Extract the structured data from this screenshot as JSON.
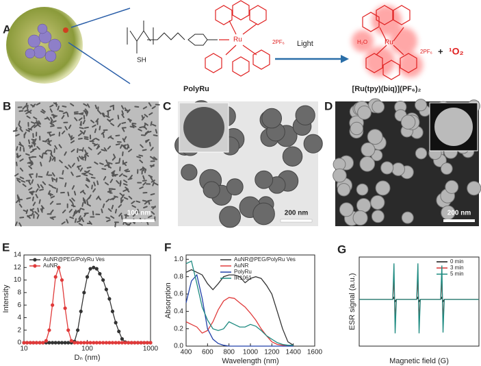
{
  "figure": {
    "panel_a": {
      "label": "A",
      "sh": "SH",
      "ru": "Ru",
      "counter_ion": "2PF₆",
      "arrow_label": "Light",
      "polymer_name": "PolyRu",
      "product_water": "H₂O",
      "product_ru": "Ru",
      "product_counter_ion": "2PF₆",
      "product_name": "[Ru(tpy)(biq)](PF₆)₂",
      "plus": "+",
      "singlet_oxygen": "¹O₂"
    },
    "panel_b": {
      "label": "B",
      "scale_bar": "100 nm"
    },
    "panel_c": {
      "label": "C",
      "scale_bar": "200 nm"
    },
    "panel_d": {
      "label": "D",
      "scale_bar": "200 nm"
    }
  },
  "chart_data": [
    {
      "type": "line",
      "label": "E",
      "x_label": "Dₙ (nm)",
      "y_label": "Intensity",
      "xlog": true,
      "markers": true,
      "legend": "upper left",
      "xlim": [
        10,
        1000
      ],
      "xticks": [
        10,
        100,
        1000
      ],
      "ylim": [
        0,
        14
      ],
      "yticks": [
        0,
        2,
        4,
        6,
        8,
        10,
        12,
        14
      ],
      "x": [
        10,
        11.2,
        12.6,
        14.1,
        15.8,
        17.8,
        20,
        22.4,
        25.1,
        28.2,
        31.6,
        35.5,
        39.8,
        44.7,
        50.1,
        56.2,
        63.1,
        70.8,
        79.4,
        89.1,
        100,
        112,
        126,
        141,
        158,
        178,
        200,
        224,
        251,
        282,
        316,
        355,
        398,
        447,
        501,
        562,
        631,
        708,
        794,
        891,
        1000
      ],
      "series": [
        {
          "name": "AuNR@PEG/PolyRu Ves",
          "color": "#333333",
          "values": [
            0,
            0,
            0,
            0,
            0,
            0,
            0,
            0,
            0,
            0,
            0,
            0,
            0,
            0,
            0,
            0,
            0.2,
            2,
            5,
            8,
            10.5,
            11.8,
            12,
            11.8,
            11,
            10,
            8.5,
            7,
            5,
            3.2,
            1.8,
            0.6,
            0.1,
            0,
            0,
            0,
            0,
            0,
            0,
            0,
            0
          ]
        },
        {
          "name": "AuNR",
          "color": "#e03a3a",
          "values": [
            0,
            0,
            0,
            0,
            0,
            0,
            0,
            0.3,
            2,
            6,
            10.5,
            12,
            10,
            5.5,
            2,
            0.3,
            0,
            0,
            0,
            0,
            0,
            0,
            0,
            0,
            0,
            0,
            0,
            0,
            0,
            0,
            0,
            0,
            0,
            0,
            0,
            0,
            0,
            0,
            0,
            0,
            0
          ]
        }
      ]
    },
    {
      "type": "line",
      "label": "F",
      "x_label": "Wavelength (nm)",
      "y_label": "Absorption",
      "xlog": false,
      "markers": false,
      "legend": "upper right",
      "xlim": [
        400,
        1600
      ],
      "xticks": [
        400,
        600,
        800,
        1000,
        1200,
        1400,
        1600
      ],
      "ylim": [
        0,
        1.05
      ],
      "yticks": [
        {
          "value": 0,
          "label": "0.0"
        },
        0.2,
        0.4,
        0.6,
        0.8,
        {
          "value": 1,
          "label": "1.0"
        }
      ],
      "x": [
        400,
        450,
        500,
        550,
        600,
        650,
        700,
        750,
        800,
        850,
        900,
        950,
        1000,
        1050,
        1100,
        1150,
        1200,
        1250,
        1300,
        1350,
        1400
      ],
      "series": [
        {
          "name": "AuNR@PEG/PolyRu Ves",
          "color": "#333333",
          "values": [
            0.85,
            0.88,
            0.85,
            0.82,
            0.72,
            0.65,
            0.72,
            0.8,
            0.82,
            0.82,
            0.8,
            0.73,
            0.78,
            0.8,
            0.78,
            0.7,
            0.6,
            0.4,
            0.2,
            0.05,
            0.01
          ]
        },
        {
          "name": "AuNR",
          "color": "#e03a3a",
          "values": [
            0.28,
            0.25,
            0.22,
            0.15,
            0.18,
            0.28,
            0.42,
            0.52,
            0.56,
            0.55,
            0.5,
            0.45,
            0.38,
            0.3,
            0.2,
            0.12,
            0.05,
            0.02,
            0.01,
            0,
            0
          ]
        },
        {
          "name": "PolyRu",
          "color": "#1f3fa8",
          "values": [
            0.5,
            0.75,
            0.82,
            0.55,
            0.2,
            0.08,
            0.03,
            0.01,
            0,
            0,
            0,
            0,
            0,
            0,
            0,
            0,
            0,
            0,
            0,
            0,
            0
          ]
        },
        {
          "name": "IR1061",
          "color": "#1d8a80",
          "values": [
            0.95,
            0.98,
            0.72,
            0.45,
            0.3,
            0.2,
            0.18,
            0.2,
            0.28,
            0.25,
            0.22,
            0.22,
            0.25,
            0.23,
            0.18,
            0.12,
            0.08,
            0.04,
            0.02,
            0.01,
            0.01
          ]
        }
      ]
    },
    {
      "type": "line",
      "label": "G",
      "x_label": "Magnetic field (G)",
      "y_label": "ESR signal (a.u.)",
      "xlog": false,
      "markers": false,
      "legend": "upper right",
      "xlim": [
        0,
        100
      ],
      "ylim": [
        -1.1,
        1
      ],
      "x": [
        0,
        28,
        29,
        30,
        31,
        48,
        49,
        50,
        51,
        68,
        69,
        70,
        71,
        100
      ],
      "series": [
        {
          "name": "0 min",
          "color": "#111111",
          "values": [
            0,
            0,
            0.05,
            -0.05,
            0,
            0,
            0.05,
            -0.05,
            0,
            0,
            0.05,
            -0.05,
            0,
            0
          ]
        },
        {
          "name": "3 min",
          "color": "#d83030",
          "values": [
            0,
            0,
            0.5,
            -0.48,
            0,
            0,
            0.5,
            -0.48,
            0,
            0,
            0.48,
            -0.46,
            0,
            0
          ]
        },
        {
          "name": "5 min",
          "color": "#1d8a80",
          "values": [
            0,
            0,
            0.85,
            -0.8,
            0,
            0,
            0.85,
            -0.8,
            0,
            0,
            0.8,
            -0.78,
            0,
            0
          ]
        }
      ]
    }
  ]
}
